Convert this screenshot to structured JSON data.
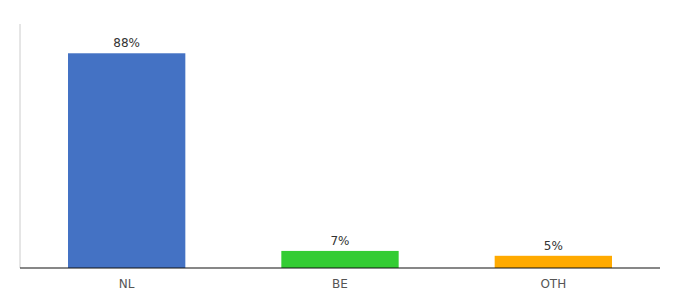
{
  "chart_data": {
    "type": "bar",
    "categories": [
      "NL",
      "BE",
      "OTH"
    ],
    "values": [
      88,
      7,
      5
    ],
    "value_labels": [
      "88%",
      "7%",
      "5%"
    ],
    "colors": [
      "#4472c4",
      "#33cc33",
      "#ffaa00"
    ],
    "ylim": [
      0,
      100
    ],
    "data_labels": true,
    "tick_labels": "x"
  }
}
